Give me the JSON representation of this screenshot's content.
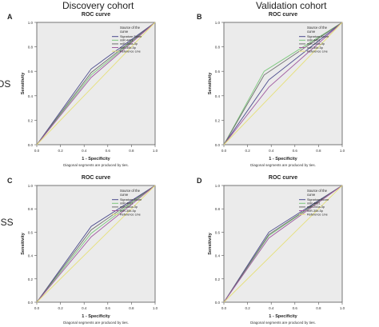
{
  "headers": {
    "discovery": "Discovery cohort",
    "validation": "Validation cohort"
  },
  "row_labels": {
    "os": "OS",
    "dss": "DSS"
  },
  "colors": {
    "plot_bg": "#ebebeb",
    "signature_score": "#4a4a8c",
    "mir_4431": "#7cc87c",
    "mir_200a_3p": "#6d6d6d",
    "mir_30b_5p": "#a05aa0",
    "reference": "#e6e07a"
  },
  "chart_data": [
    {
      "panel": "A",
      "type": "line",
      "title": "ROC curve",
      "xlabel": "1 - Specificity",
      "ylabel": "Sensitivity",
      "xlim": [
        0,
        1
      ],
      "ylim": [
        0,
        1
      ],
      "xticks": [
        "0.0",
        "0.2",
        "0.4",
        "0.6",
        "0.8",
        "1.0"
      ],
      "yticks": [
        "0.0",
        "0.2",
        "0.4",
        "0.6",
        "0.8",
        "1.0"
      ],
      "legend_title": "Source of the curve",
      "footnote": "Diagonal segments are produced by ties.",
      "series": [
        {
          "name": "Signature Score",
          "color": "#4a4a8c",
          "x": [
            0,
            0.46,
            1
          ],
          "y": [
            0,
            0.62,
            1
          ]
        },
        {
          "name": "miR-4431",
          "color": "#7cc87c",
          "x": [
            0,
            0.46,
            1
          ],
          "y": [
            0,
            0.57,
            1
          ]
        },
        {
          "name": "miR-200a-3p",
          "color": "#6d6d6d",
          "x": [
            0,
            0.46,
            1
          ],
          "y": [
            0,
            0.59,
            1
          ]
        },
        {
          "name": "miR-30b-5p",
          "color": "#a05aa0",
          "x": [
            0,
            0.46,
            1
          ],
          "y": [
            0,
            0.55,
            1
          ]
        },
        {
          "name": "Reference Line",
          "color": "#e6e07a",
          "x": [
            0,
            1
          ],
          "y": [
            0,
            1
          ]
        }
      ]
    },
    {
      "panel": "B",
      "type": "line",
      "title": "ROC curve",
      "xlabel": "1 - Specificity",
      "ylabel": "Sensitivity",
      "xlim": [
        0,
        1
      ],
      "ylim": [
        0,
        1
      ],
      "xticks": [
        "0.0",
        "0.2",
        "0.4",
        "0.6",
        "0.8",
        "1.0"
      ],
      "yticks": [
        "0.0",
        "0.2",
        "0.4",
        "0.6",
        "0.8",
        "1.0"
      ],
      "legend_title": "Source of the curve",
      "footnote": "Diagonal segments are produced by ties.",
      "series": [
        {
          "name": "Signature Score",
          "color": "#4a4a8c",
          "x": [
            0,
            0.38,
            1
          ],
          "y": [
            0,
            0.53,
            1
          ]
        },
        {
          "name": "miR-4431",
          "color": "#7cc87c",
          "x": [
            0,
            0.34,
            1
          ],
          "y": [
            0,
            0.6,
            1
          ]
        },
        {
          "name": "miR-200a-3p",
          "color": "#6d6d6d",
          "x": [
            0,
            0.34,
            1
          ],
          "y": [
            0,
            0.57,
            1
          ]
        },
        {
          "name": "miR-30b-5p",
          "color": "#a05aa0",
          "x": [
            0,
            0.38,
            1
          ],
          "y": [
            0,
            0.47,
            1
          ]
        },
        {
          "name": "Reference Line",
          "color": "#e6e07a",
          "x": [
            0,
            1
          ],
          "y": [
            0,
            1
          ]
        }
      ]
    },
    {
      "panel": "C",
      "type": "line",
      "title": "ROC curve",
      "xlabel": "1 - Specificity",
      "ylabel": "Sensitivity",
      "xlim": [
        0,
        1
      ],
      "ylim": [
        0,
        1
      ],
      "xticks": [
        "0.0",
        "0.2",
        "0.4",
        "0.6",
        "0.8",
        "1.0"
      ],
      "yticks": [
        "0.0",
        "0.2",
        "0.4",
        "0.6",
        "0.8",
        "1.0"
      ],
      "legend_title": "Source of the curve",
      "footnote": "Diagonal segments are produced by ties.",
      "series": [
        {
          "name": "Signature Score",
          "color": "#4a4a8c",
          "x": [
            0,
            0.46,
            1
          ],
          "y": [
            0,
            0.65,
            1
          ]
        },
        {
          "name": "miR-4431",
          "color": "#7cc87c",
          "x": [
            0,
            0.46,
            1
          ],
          "y": [
            0,
            0.59,
            1
          ]
        },
        {
          "name": "miR-200a-3p",
          "color": "#6d6d6d",
          "x": [
            0,
            0.46,
            1
          ],
          "y": [
            0,
            0.62,
            1
          ]
        },
        {
          "name": "miR-30b-5p",
          "color": "#a05aa0",
          "x": [
            0,
            0.46,
            1
          ],
          "y": [
            0,
            0.56,
            1
          ]
        },
        {
          "name": "Reference Line",
          "color": "#e6e07a",
          "x": [
            0,
            1
          ],
          "y": [
            0,
            1
          ]
        }
      ]
    },
    {
      "panel": "D",
      "type": "line",
      "title": "ROC curve",
      "xlabel": "1 - Specificity",
      "ylabel": "Sensitivity",
      "xlim": [
        0,
        1
      ],
      "ylim": [
        0,
        1
      ],
      "xticks": [
        "0.0",
        "0.2",
        "0.4",
        "0.6",
        "0.8",
        "1.0"
      ],
      "yticks": [
        "0.0",
        "0.2",
        "0.4",
        "0.6",
        "0.8",
        "1.0"
      ],
      "legend_title": "Source of the curve",
      "footnote": "Diagonal segments are produced by ties.",
      "series": [
        {
          "name": "Signature Score",
          "color": "#4a4a8c",
          "x": [
            0,
            0.38,
            1
          ],
          "y": [
            0,
            0.6,
            1
          ]
        },
        {
          "name": "miR-4431",
          "color": "#7cc87c",
          "x": [
            0,
            0.38,
            1
          ],
          "y": [
            0,
            0.57,
            1
          ]
        },
        {
          "name": "miR-200a-3p",
          "color": "#6d6d6d",
          "x": [
            0,
            0.38,
            1
          ],
          "y": [
            0,
            0.58,
            1
          ]
        },
        {
          "name": "miR-30b-5p",
          "color": "#a05aa0",
          "x": [
            0,
            0.38,
            1
          ],
          "y": [
            0,
            0.55,
            1
          ]
        },
        {
          "name": "Reference Line",
          "color": "#e6e07a",
          "x": [
            0,
            1
          ],
          "y": [
            0,
            1
          ]
        }
      ]
    }
  ]
}
